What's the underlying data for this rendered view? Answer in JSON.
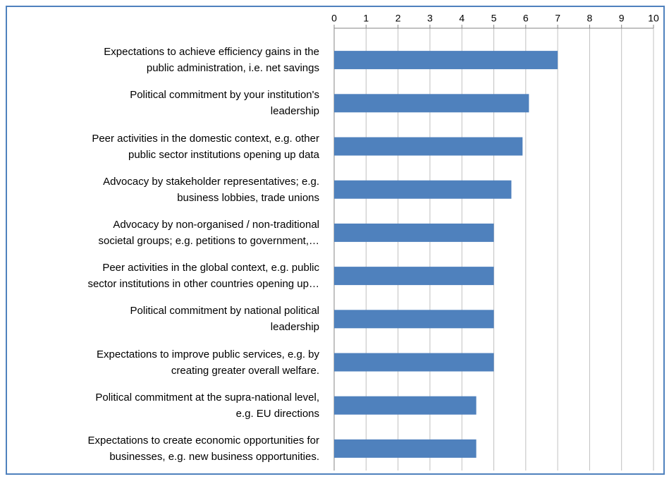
{
  "chart_data": {
    "type": "barh",
    "categories": [
      "Expectations to achieve efficiency gains in the\npublic administration, i.e. net savings",
      "Political commitment by your institution's\nleadership",
      "Peer activities in the domestic context, e.g. other\npublic sector institutions opening up data",
      "Advocacy by stakeholder representatives; e.g.\nbusiness lobbies, trade unions",
      "Advocacy by non-organised / non-traditional\nsocietal groups; e.g. petitions to government,…",
      "Peer activities in the global context, e.g. public\nsector institutions in other countries opening up…",
      "Political commitment by national political\nleadership",
      "Expectations to improve public services, e.g. by\ncreating greater overall welfare.",
      "Political commitment at the supra-national level,\ne.g. EU directions",
      "Expectations to create economic opportunities for\nbusinesses, e.g. new business opportunities."
    ],
    "values": [
      7,
      6.1,
      5.9,
      5.55,
      5,
      5,
      5,
      5,
      4.45,
      4.45
    ],
    "color": "#4f81bd",
    "xlim": [
      0,
      10
    ],
    "xticks": [
      0,
      1,
      2,
      3,
      4,
      5,
      6,
      7,
      8,
      9,
      10
    ],
    "grid": true
  }
}
